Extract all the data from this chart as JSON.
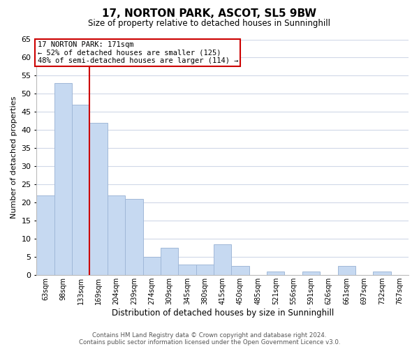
{
  "title": "17, NORTON PARK, ASCOT, SL5 9BW",
  "subtitle": "Size of property relative to detached houses in Sunninghill",
  "xlabel": "Distribution of detached houses by size in Sunninghill",
  "ylabel": "Number of detached properties",
  "categories": [
    "63sqm",
    "98sqm",
    "133sqm",
    "169sqm",
    "204sqm",
    "239sqm",
    "274sqm",
    "309sqm",
    "345sqm",
    "380sqm",
    "415sqm",
    "450sqm",
    "485sqm",
    "521sqm",
    "556sqm",
    "591sqm",
    "626sqm",
    "661sqm",
    "697sqm",
    "732sqm",
    "767sqm"
  ],
  "values": [
    22,
    53,
    47,
    42,
    22,
    21,
    5,
    7.5,
    3,
    3,
    8.5,
    2.5,
    0,
    1,
    0,
    1,
    0,
    2.5,
    0,
    1,
    0
  ],
  "bar_color": "#c6d9f1",
  "bar_edge_color": "#a0b8d8",
  "vline_color": "#cc0000",
  "vline_index": 3,
  "annotation_line1": "17 NORTON PARK: 171sqm",
  "annotation_line2": "← 52% of detached houses are smaller (125)",
  "annotation_line3": "48% of semi-detached houses are larger (114) →",
  "annotation_box_edge": "#cc0000",
  "ylim": [
    0,
    65
  ],
  "yticks": [
    0,
    5,
    10,
    15,
    20,
    25,
    30,
    35,
    40,
    45,
    50,
    55,
    60,
    65
  ],
  "background_color": "#ffffff",
  "grid_color": "#d0d8e8",
  "footer_line1": "Contains HM Land Registry data © Crown copyright and database right 2024.",
  "footer_line2": "Contains public sector information licensed under the Open Government Licence v3.0."
}
